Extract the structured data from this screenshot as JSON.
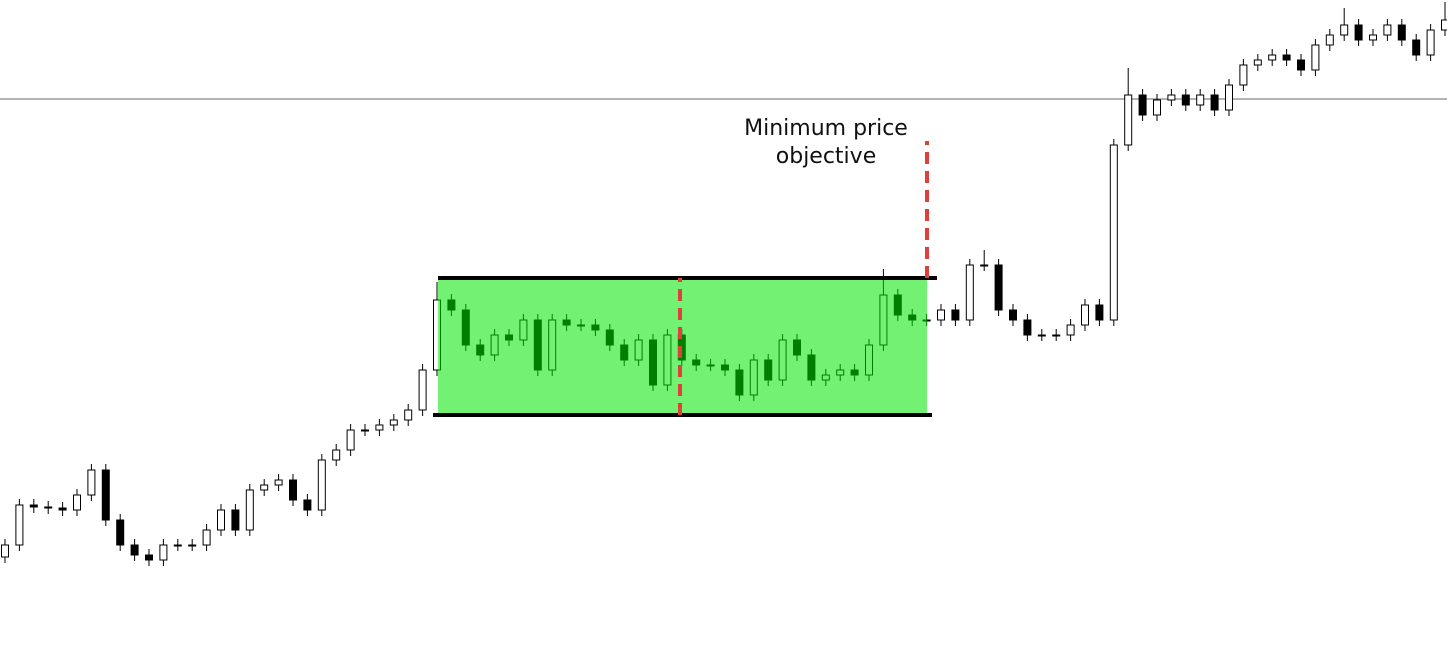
{
  "chart_data": {
    "type": "candlestick",
    "open": [
      90,
      102,
      142,
      140,
      139,
      137,
      152,
      177,
      127,
      102,
      92,
      87,
      102,
      102,
      102,
      117,
      137,
      117,
      157,
      162,
      167,
      147,
      137,
      187,
      197,
      217,
      217,
      222,
      227,
      237,
      277,
      347,
      337,
      302,
      292,
      312,
      307,
      327,
      277,
      327,
      322,
      322,
      317,
      302,
      287,
      307,
      262,
      312,
      287,
      282,
      282,
      277,
      252,
      287,
      267,
      307,
      292,
      267,
      272,
      277,
      272,
      302,
      352,
      332,
      327,
      327,
      337,
      327,
      382,
      382,
      337,
      327,
      312,
      312,
      312,
      322,
      342,
      327,
      502,
      552,
      532,
      547,
      552,
      542,
      552,
      537,
      562,
      582,
      587,
      592,
      587,
      577,
      602,
      612,
      622,
      607,
      612,
      622,
      607,
      592,
      617
    ],
    "high": [
      108,
      148,
      148,
      146,
      145,
      158,
      183,
      183,
      133,
      108,
      98,
      108,
      108,
      108,
      123,
      143,
      143,
      163,
      168,
      173,
      173,
      153,
      193,
      203,
      223,
      223,
      228,
      233,
      243,
      283,
      365,
      353,
      343,
      308,
      318,
      318,
      333,
      333,
      333,
      333,
      328,
      328,
      323,
      308,
      313,
      313,
      318,
      318,
      293,
      288,
      288,
      283,
      293,
      293,
      313,
      313,
      298,
      278,
      283,
      283,
      308,
      378,
      358,
      338,
      333,
      343,
      343,
      388,
      397,
      388,
      343,
      333,
      318,
      318,
      328,
      348,
      348,
      508,
      579,
      558,
      553,
      558,
      558,
      558,
      558,
      568,
      588,
      593,
      598,
      598,
      593,
      608,
      618,
      639,
      628,
      618,
      628,
      628,
      613,
      623,
      645
    ],
    "low": [
      84,
      96,
      134,
      133,
      131,
      131,
      146,
      121,
      96,
      86,
      81,
      81,
      96,
      96,
      96,
      111,
      111,
      111,
      151,
      156,
      141,
      131,
      131,
      181,
      191,
      211,
      211,
      216,
      221,
      231,
      271,
      331,
      296,
      286,
      286,
      301,
      301,
      271,
      271,
      316,
      316,
      311,
      296,
      281,
      281,
      256,
      256,
      281,
      276,
      276,
      271,
      246,
      246,
      261,
      261,
      286,
      261,
      261,
      266,
      266,
      266,
      296,
      326,
      321,
      321,
      321,
      321,
      321,
      376,
      331,
      321,
      306,
      306,
      306,
      306,
      316,
      321,
      321,
      496,
      526,
      526,
      541,
      536,
      536,
      531,
      531,
      556,
      576,
      581,
      581,
      571,
      571,
      596,
      606,
      601,
      601,
      606,
      601,
      586,
      586,
      611
    ],
    "close": [
      102,
      142,
      140,
      139,
      137,
      152,
      177,
      127,
      102,
      92,
      87,
      102,
      102,
      102,
      117,
      137,
      117,
      157,
      162,
      167,
      147,
      137,
      187,
      197,
      217,
      217,
      222,
      227,
      237,
      277,
      347,
      337,
      302,
      292,
      312,
      307,
      327,
      277,
      327,
      322,
      322,
      317,
      302,
      287,
      307,
      262,
      312,
      287,
      282,
      282,
      277,
      252,
      287,
      267,
      307,
      292,
      267,
      272,
      277,
      272,
      302,
      352,
      332,
      327,
      327,
      337,
      327,
      382,
      382,
      337,
      327,
      312,
      312,
      312,
      322,
      342,
      327,
      502,
      552,
      532,
      547,
      552,
      542,
      552,
      537,
      562,
      582,
      587,
      592,
      587,
      577,
      602,
      612,
      622,
      607,
      612,
      622,
      607,
      592,
      617,
      627
    ],
    "ylim": [
      0,
      647
    ],
    "up_color": "#ffffff",
    "down_color": "#000000",
    "range": {
      "top": 369,
      "bottom": 232,
      "color": "#00e600"
    },
    "horizontal_line": 548,
    "measured_move": [
      232,
      369
    ],
    "projection": [
      369,
      506
    ],
    "annotation": [
      "Minimum price",
      "objective"
    ]
  }
}
